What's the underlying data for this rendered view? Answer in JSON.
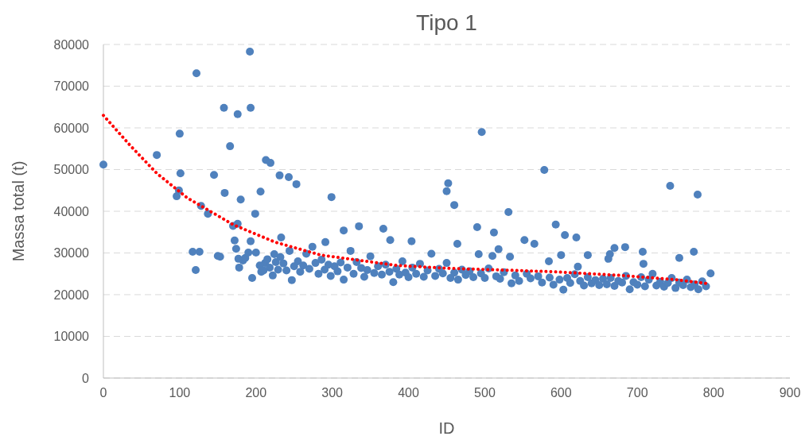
{
  "chart_data": {
    "type": "scatter",
    "title": "Tipo 1",
    "xlabel": "ID",
    "ylabel": "Massa total (t)",
    "xlim": [
      0,
      900
    ],
    "xticks": [
      0,
      100,
      200,
      300,
      400,
      500,
      600,
      700,
      800,
      900
    ],
    "ylim": [
      0,
      80000
    ],
    "yticks": [
      0,
      10000,
      20000,
      30000,
      40000,
      50000,
      60000,
      70000,
      80000
    ],
    "grid": "y",
    "marker": "circle",
    "series": [
      {
        "color": "#4f81bd",
        "x": [
          0,
          70,
          96,
          99,
          100,
          101,
          117,
          121,
          122,
          126,
          128,
          137,
          145,
          150,
          153,
          158,
          159,
          166,
          170,
          172,
          174,
          176,
          176,
          177,
          178,
          180,
          183,
          186,
          190,
          193,
          193,
          192,
          195,
          199,
          200,
          206,
          207,
          213,
          219,
          212,
          224,
          231,
          233,
          243,
          253,
          299,
          315,
          335,
          367,
          376,
          404,
          291,
          450,
          452,
          460,
          496,
          464,
          490,
          512,
          518,
          531,
          578,
          552,
          565,
          593,
          492,
          510,
          533,
          584,
          605,
          620,
          600,
          635,
          622,
          662,
          664,
          670,
          684,
          707,
          708,
          743,
          779,
          755,
          774,
          796,
          205,
          210,
          215,
          218,
          222,
          226,
          229,
          232,
          236,
          240,
          244,
          247,
          250,
          255,
          258,
          262,
          266,
          270,
          274,
          278,
          282,
          286,
          290,
          295,
          298,
          303,
          307,
          311,
          315,
          320,
          324,
          328,
          332,
          338,
          342,
          346,
          350,
          355,
          360,
          365,
          370,
          375,
          380,
          384,
          388,
          392,
          396,
          400,
          405,
          410,
          415,
          420,
          425,
          430,
          435,
          440,
          445,
          450,
          455,
          460,
          465,
          470,
          475,
          480,
          485,
          495,
          500,
          505,
          515,
          520,
          525,
          535,
          540,
          545,
          555,
          560,
          570,
          575,
          585,
          590,
          598,
          603,
          608,
          612,
          618,
          625,
          630,
          635,
          640,
          645,
          650,
          655,
          660,
          665,
          670,
          675,
          680,
          685,
          690,
          695,
          700,
          705,
          710,
          715,
          720,
          725,
          730,
          735,
          740,
          745,
          750,
          755,
          760,
          765,
          770,
          775,
          780,
          785,
          790
        ],
        "values": [
          51200,
          53500,
          43600,
          45000,
          58600,
          49100,
          30300,
          25900,
          73100,
          30300,
          41300,
          39400,
          48700,
          29300,
          29100,
          64800,
          44400,
          55600,
          36500,
          33000,
          31000,
          63300,
          37000,
          28600,
          26500,
          42800,
          28200,
          28800,
          30100,
          32800,
          64800,
          78300,
          24000,
          39400,
          30100,
          44700,
          25500,
          52300,
          51600,
          27600,
          29700,
          48600,
          33700,
          48200,
          46500,
          43400,
          35400,
          36400,
          35800,
          33100,
          32800,
          32600,
          44800,
          46700,
          41500,
          59000,
          32200,
          36200,
          34900,
          30900,
          39800,
          49900,
          33100,
          32200,
          36800,
          29700,
          29300,
          29100,
          28000,
          34300,
          33700,
          29500,
          29500,
          26700,
          28600,
          29700,
          31200,
          31400,
          30300,
          27400,
          46100,
          44000,
          28800,
          30300,
          25100,
          27000,
          25800,
          28500,
          26500,
          24600,
          27800,
          26000,
          29000,
          27500,
          25800,
          30500,
          23500,
          26800,
          28000,
          25500,
          27000,
          29800,
          26200,
          31500,
          27600,
          25000,
          28400,
          26000,
          27200,
          24500,
          26800,
          25600,
          27700,
          23600,
          26500,
          30500,
          25000,
          27800,
          26400,
          24300,
          25900,
          29200,
          25200,
          26800,
          24800,
          27200,
          25500,
          23000,
          26200,
          24800,
          28000,
          25300,
          24200,
          26500,
          25000,
          27400,
          24300,
          25800,
          29800,
          24500,
          26200,
          25100,
          27600,
          24000,
          25300,
          23600,
          26000,
          24700,
          25600,
          24200,
          25100,
          24000,
          26300,
          24400,
          23800,
          25400,
          22700,
          24600,
          23300,
          25000,
          23900,
          24400,
          22900,
          24100,
          22400,
          23600,
          21200,
          24000,
          22800,
          24900,
          23300,
          22200,
          24200,
          22700,
          23500,
          22300,
          23800,
          22500,
          24000,
          22100,
          23300,
          22900,
          24500,
          21300,
          23000,
          22400,
          24200,
          22000,
          23600,
          25000,
          22200,
          23100,
          21900,
          22800,
          24000,
          21600,
          22900,
          22300,
          23600,
          21800,
          22500,
          21300,
          23200,
          22000
        ]
      },
      {
        "type": "line",
        "color": "#ff0000",
        "line_style": "dotted",
        "marker": "none",
        "x": [
          0,
          35,
          70,
          110,
          170,
          225,
          285,
          385,
          455,
          525,
          590,
          680,
          750,
          790
        ],
        "values": [
          63000,
          55800,
          49100,
          43200,
          36800,
          32600,
          29500,
          27000,
          26300,
          25900,
          25500,
          24600,
          23600,
          22700
        ]
      }
    ]
  }
}
